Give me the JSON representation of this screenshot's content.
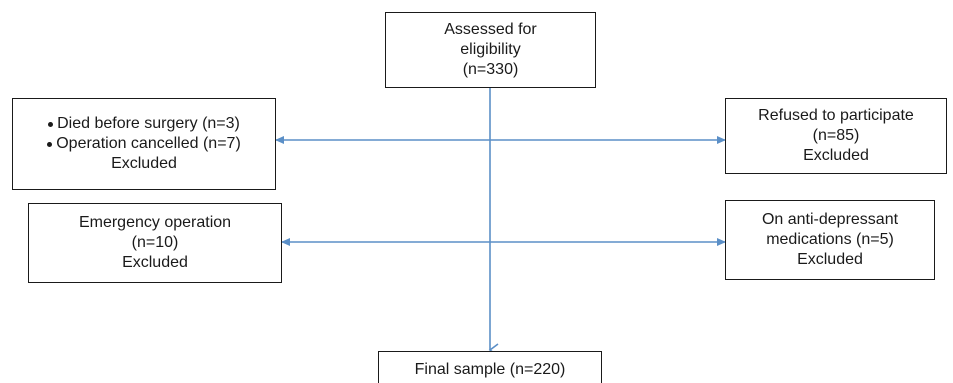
{
  "boxes": {
    "assessed": {
      "lines": [
        "Assessed for",
        "eligibility",
        "(n=330)"
      ]
    },
    "excluded_left_1": {
      "bullets": [
        "Died before surgery (n=3)",
        "Operation cancelled (n=7)"
      ],
      "footer": "Excluded"
    },
    "excluded_right_1": {
      "lines": [
        "Refused to participate",
        "(n=85)",
        "Excluded"
      ]
    },
    "excluded_left_2": {
      "lines": [
        "Emergency operation",
        "(n=10)",
        "Excluded"
      ]
    },
    "excluded_right_2": {
      "lines": [
        "On anti-depressant",
        "medications (n=5)",
        "Excluded"
      ]
    },
    "final": {
      "lines": [
        "Final sample (n=220)"
      ]
    }
  },
  "colors": {
    "arrow": "#5b8fc7",
    "box_border": "#1a1a1a",
    "text": "#1a1a1a"
  }
}
